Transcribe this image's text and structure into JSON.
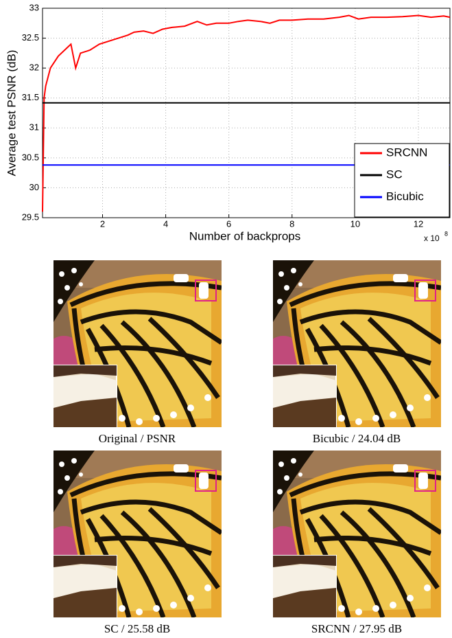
{
  "chart_data": {
    "type": "line",
    "xlabel": "Number of backprops",
    "ylabel": "Average test PSNR (dB)",
    "x_scale_base": "x 10",
    "x_scale_exponent": "8",
    "xlim": [
      0.1,
      13
    ],
    "xticks": [
      2,
      4,
      6,
      8,
      10,
      12
    ],
    "ylim": [
      29.5,
      33
    ],
    "yticks": [
      29.5,
      30,
      30.5,
      31,
      31.5,
      32,
      32.5,
      33
    ],
    "grid": true,
    "legend": "lower right",
    "series": [
      {
        "name": "SRCNN",
        "color": "#ff0000",
        "x": [
          0.1,
          0.15,
          0.2,
          0.35,
          0.6,
          0.9,
          1.0,
          1.15,
          1.3,
          1.6,
          1.9,
          2.2,
          2.5,
          2.8,
          3.0,
          3.3,
          3.6,
          3.9,
          4.2,
          4.6,
          5.0,
          5.3,
          5.6,
          6.0,
          6.3,
          6.6,
          7.0,
          7.3,
          7.6,
          8.0,
          8.5,
          9.0,
          9.5,
          9.8,
          10.1,
          10.5,
          11.0,
          11.5,
          12.0,
          12.4,
          12.8,
          13.0
        ],
        "values": [
          29.6,
          31.5,
          31.7,
          32.0,
          32.2,
          32.35,
          32.4,
          32.0,
          32.25,
          32.3,
          32.4,
          32.45,
          32.5,
          32.55,
          32.6,
          32.62,
          32.58,
          32.65,
          32.68,
          32.7,
          32.78,
          32.72,
          32.75,
          32.75,
          32.78,
          32.8,
          32.78,
          32.75,
          32.8,
          32.8,
          32.82,
          32.82,
          32.85,
          32.88,
          32.82,
          32.85,
          32.85,
          32.86,
          32.88,
          32.85,
          32.87,
          32.85
        ]
      },
      {
        "name": "SC",
        "color": "#000000",
        "x": [
          0.1,
          13
        ],
        "values": [
          31.42,
          31.42
        ]
      },
      {
        "name": "Bicubic",
        "color": "#0000ff",
        "x": [
          0.1,
          13
        ],
        "values": [
          30.38,
          30.38
        ]
      }
    ]
  },
  "panels": [
    {
      "caption": "Original / PSNR"
    },
    {
      "caption": "Bicubic / 24.04 dB"
    },
    {
      "caption": "SC / 25.58 dB"
    },
    {
      "caption": "SRCNN / 27.95 dB"
    }
  ]
}
